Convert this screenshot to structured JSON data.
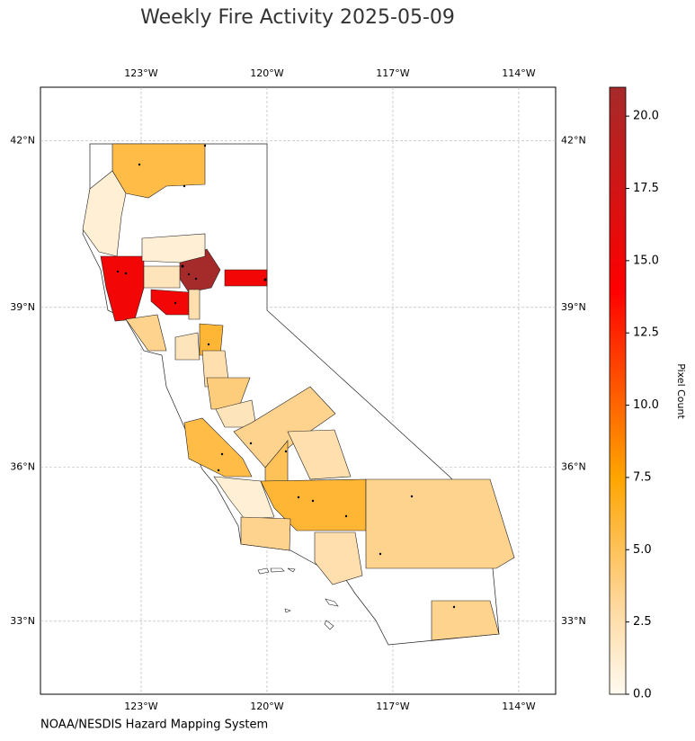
{
  "chart_data": {
    "type": "choropleth",
    "title": "Weekly Fire Activity 2025-05-09",
    "source": "NOAA/NESDIS Hazard Mapping System",
    "xlim": [
      -125.4,
      -113.12
    ],
    "ylim": [
      31.54,
      42.93
    ],
    "xticks": [
      {
        "value": -123,
        "label": "123°W"
      },
      {
        "value": -120,
        "label": "120°W"
      },
      {
        "value": -117,
        "label": "117°W"
      },
      {
        "value": -114,
        "label": "114°W"
      }
    ],
    "yticks": [
      {
        "value": 33,
        "label": "33°N"
      },
      {
        "value": 36,
        "label": "36°N"
      },
      {
        "value": 39,
        "label": "39°N"
      },
      {
        "value": 42,
        "label": "42°N"
      }
    ],
    "grid": true,
    "colorbar": {
      "label": "Pixel Count",
      "lim": [
        0,
        21
      ],
      "ticks": [
        {
          "value": 0,
          "label": "0.0"
        },
        {
          "value": 2.5,
          "label": "2.5"
        },
        {
          "value": 5,
          "label": "5.0"
        },
        {
          "value": 7.5,
          "label": "7.5"
        },
        {
          "value": 10,
          "label": "10.0"
        },
        {
          "value": 12.5,
          "label": "12.5"
        },
        {
          "value": 15,
          "label": "15.0"
        },
        {
          "value": 17.5,
          "label": "17.5"
        },
        {
          "value": 20,
          "label": "20.0"
        }
      ],
      "colormap": [
        {
          "value": 0,
          "color": "#fffaf0"
        },
        {
          "value": 3,
          "color": "#fed9a0"
        },
        {
          "value": 7.5,
          "color": "#ffa500"
        },
        {
          "value": 14,
          "color": "#ff0000"
        },
        {
          "value": 21,
          "color": "#a52a2a"
        }
      ]
    },
    "county_values": [
      5.5,
      1,
      15,
      21,
      15,
      15,
      1,
      2,
      3.5,
      2,
      6,
      2.5,
      2.5,
      4,
      2,
      3.5,
      2.5,
      5,
      5.5,
      1,
      6,
      3.5,
      3.5,
      2.5,
      3.5
    ]
  }
}
